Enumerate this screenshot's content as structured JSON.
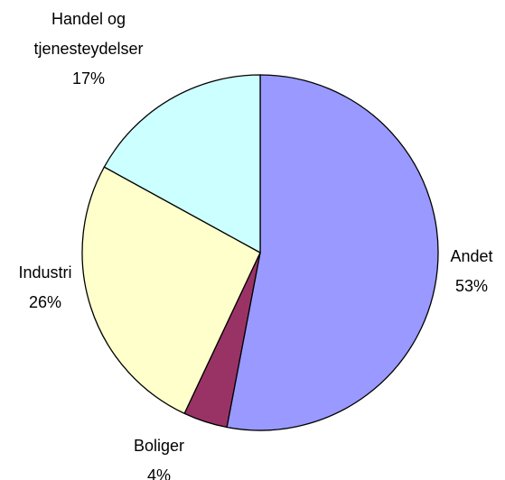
{
  "chart_data": {
    "type": "pie",
    "categories": [
      "Andet",
      "Boliger",
      "Industri",
      "Handel og tjenesteydelser"
    ],
    "values": [
      53,
      4,
      26,
      17
    ],
    "value_labels": [
      "53%",
      "4%",
      "26%",
      "17%"
    ],
    "colors": [
      "#9999ff",
      "#993366",
      "#ffffcc",
      "#ccffff"
    ]
  }
}
